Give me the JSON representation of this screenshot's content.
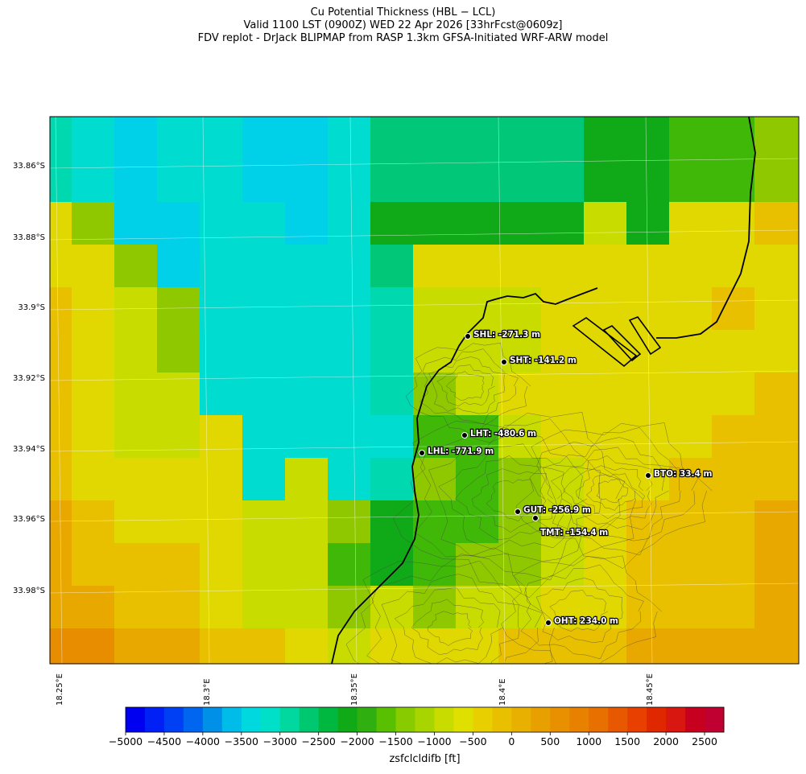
{
  "titles": {
    "line1": "Cu Potential Thickness (HBL − LCL)",
    "line2": "Valid 1100 LST (0900Z) WED 22 Apr 2026 [33hrFcst@0609z]",
    "line3": "FDV replot - DrJack BLIPMAP from RASP 1.3km GFSA-Initiated WRF-ARW model"
  },
  "map": {
    "lat_labels": [
      "33.86°S",
      "33.88°S",
      "33.9°S",
      "33.92°S",
      "33.94°S",
      "33.96°S",
      "33.98°S"
    ],
    "lon_labels": [
      "18.25°E",
      "18.3°E",
      "18.35°E",
      "18.4°E",
      "18.45°E"
    ],
    "stations": [
      {
        "code": "SHL",
        "label": "SHL: -271.3 m",
        "value_m": -271.3
      },
      {
        "code": "SHT",
        "label": "SHT: -141.2 m",
        "value_m": -141.2
      },
      {
        "code": "LHT",
        "label": "LHT: -480.6 m",
        "value_m": -480.6
      },
      {
        "code": "LHL",
        "label": "LHL: -771.9 m",
        "value_m": -771.9
      },
      {
        "code": "BTO",
        "label": "BTO: 33.4 m",
        "value_m": 33.4
      },
      {
        "code": "GUT",
        "label": "GUT: -256.9 m",
        "value_m": -256.9
      },
      {
        "code": "TMT",
        "label": "TMT: -154.4 m",
        "value_m": -154.4
      },
      {
        "code": "OHT",
        "label": "OHT: 234.0 m",
        "value_m": 234.0
      }
    ]
  },
  "colorbar": {
    "label": "zsfclcldifb [ft]",
    "ticks": [
      "−5000",
      "−4500",
      "−4000",
      "−3500",
      "−3000",
      "−2500",
      "−2000",
      "−1500",
      "−1000",
      "−500",
      "0",
      "500",
      "1000",
      "1500",
      "2000",
      "2500"
    ],
    "min": -5000,
    "max": 2750,
    "step": 250,
    "colors": [
      "#0000f0",
      "#0020f5",
      "#0040f5",
      "#0066f0",
      "#0090e8",
      "#00bce8",
      "#00d8e0",
      "#00e0c8",
      "#00d8a0",
      "#00c870",
      "#00b840",
      "#10aa18",
      "#30b010",
      "#58c000",
      "#88cc00",
      "#a8d400",
      "#c8dc00",
      "#e0e000",
      "#e8d000",
      "#e8c000",
      "#e8b000",
      "#e8a000",
      "#e89000",
      "#e88000",
      "#e87000",
      "#e85800",
      "#e84000",
      "#e02800",
      "#d81810",
      "#c80020",
      "#c00030"
    ]
  }
}
